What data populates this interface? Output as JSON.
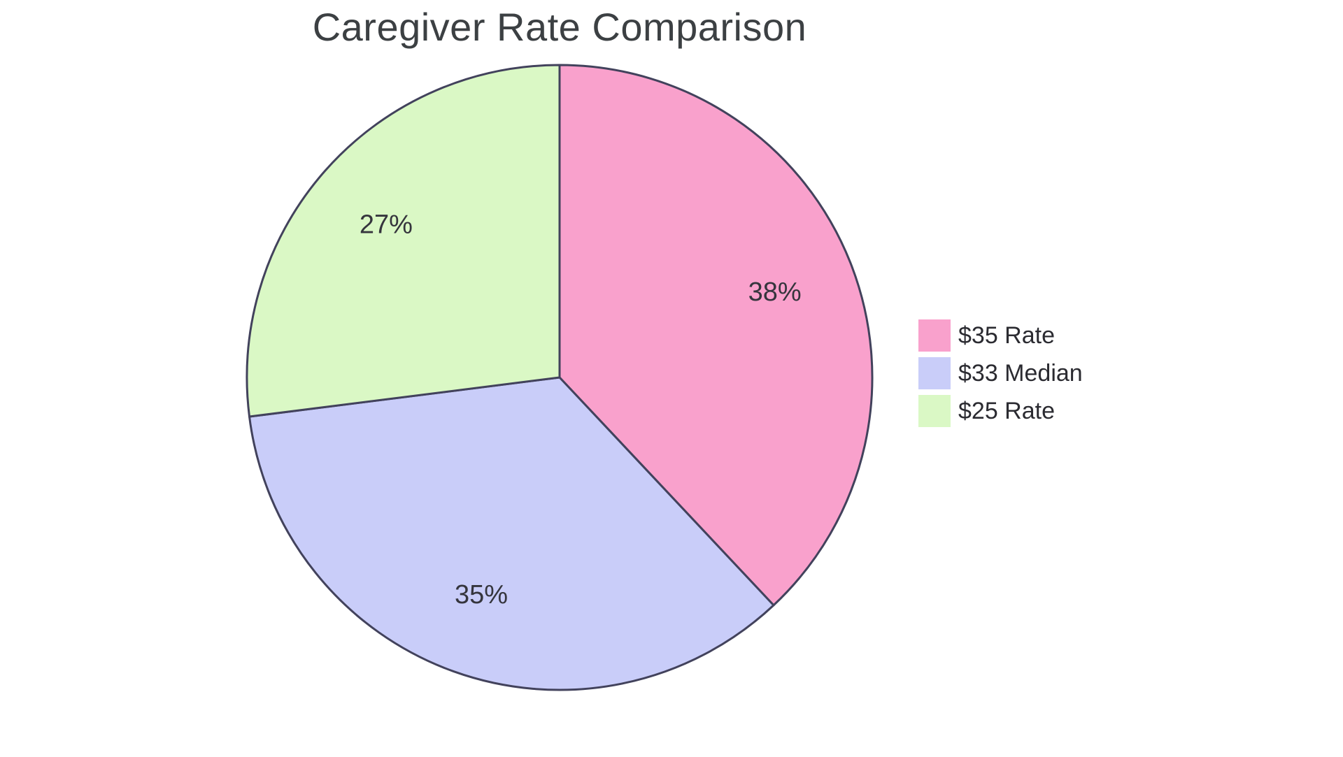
{
  "page": {
    "background_color": "#FFFFFF"
  },
  "chart_data": {
    "type": "pie",
    "title": "Caregiver Rate Comparison",
    "slices": [
      {
        "label": "$35 Rate",
        "value": 38,
        "display": "38%",
        "color": "#F9A1CC"
      },
      {
        "label": "$33 Median",
        "value": 35,
        "display": "35%",
        "color": "#C9CDF9"
      },
      {
        "label": "$25 Rate",
        "value": 27,
        "display": "27%",
        "color": "#DAF8C5"
      }
    ],
    "start_angle_deg": 0,
    "direction": "clockwise",
    "slice_stroke_color": "#42425C",
    "slice_stroke_width": 3,
    "legend_position": "right",
    "grid": false,
    "title_color": "#3C4043",
    "slice_label_color": "#35353D",
    "legend_text_color": "#2B2B31"
  }
}
